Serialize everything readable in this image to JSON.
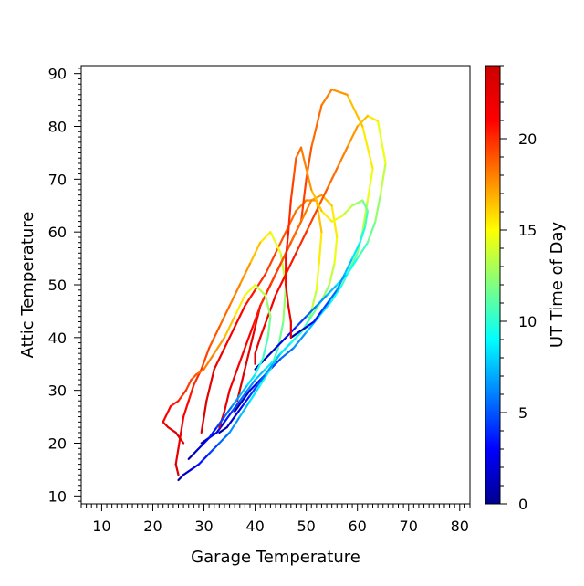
{
  "chart_data": {
    "type": "line",
    "xlabel": "Garage Temperature",
    "ylabel": "Attic Temperature",
    "xlim": [
      6,
      82
    ],
    "ylim": [
      8.5,
      91.5
    ],
    "x_ticks": [
      "10",
      "20",
      "30",
      "40",
      "50",
      "60",
      "70",
      "80"
    ],
    "y_ticks": [
      "10",
      "20",
      "30",
      "40",
      "50",
      "60",
      "70",
      "80",
      "90"
    ],
    "colorbar": {
      "label": "UT Time of Day",
      "range": [
        0,
        24
      ],
      "ticks": [
        "0",
        "5",
        "10",
        "15",
        "20"
      ],
      "colormap": [
        "#00008f",
        "#0000ff",
        "#0080ff",
        "#00ffff",
        "#80ff80",
        "#ffff00",
        "#ff8000",
        "#ff0000",
        "#cc0000"
      ]
    },
    "grid": false,
    "series": [
      {
        "x": [
          29.5,
          31,
          32.5,
          34,
          35.5,
          37,
          38.5,
          40,
          42,
          44,
          46,
          48,
          50,
          51,
          52,
          52.5,
          53,
          52,
          50,
          48,
          46,
          44,
          42,
          40,
          38,
          36,
          34,
          32,
          30.5,
          29.5
        ],
        "y": [
          20,
          21,
          22,
          24,
          26,
          28,
          30,
          32,
          34,
          36,
          38,
          40,
          42,
          45,
          49,
          54,
          60,
          66,
          66,
          64,
          60,
          56,
          52,
          49,
          46,
          42,
          38,
          34,
          28,
          22
        ],
        "t": [
          0.5,
          1.5,
          2.5,
          3.5,
          4.5,
          5.5,
          6.5,
          7.5,
          8.5,
          9.5,
          10.5,
          11.5,
          12.5,
          13.5,
          14.5,
          15.5,
          16.5,
          17.5,
          18,
          18.5,
          19,
          19.5,
          20,
          20.5,
          21,
          21.5,
          22,
          22.5,
          23,
          23.5
        ]
      },
      {
        "x": [
          36,
          37.5,
          39,
          41,
          43,
          45,
          47.5,
          50,
          52.5,
          55,
          57,
          58.5,
          60,
          61,
          62,
          63,
          61,
          58,
          55,
          53,
          51,
          50,
          49,
          47,
          45,
          43,
          41,
          39.5,
          38,
          36.5
        ],
        "y": [
          26,
          28,
          30,
          32,
          34,
          36,
          38,
          41,
          44,
          47,
          50,
          53,
          56,
          60,
          66,
          72,
          80,
          86,
          87,
          84,
          76,
          70,
          62,
          58,
          54,
          50,
          46,
          40,
          34,
          28
        ],
        "t": [
          0.5,
          1.5,
          2.5,
          3.5,
          4.5,
          5.5,
          6.5,
          7.5,
          8.5,
          9.5,
          10.5,
          11.5,
          12.5,
          13.5,
          14.5,
          15.5,
          16.5,
          17.5,
          18,
          18.5,
          19,
          19.5,
          20,
          20.5,
          21,
          21.5,
          22,
          22.5,
          23,
          23.5
        ]
      },
      {
        "x": [
          25,
          26,
          27.5,
          29,
          31,
          33,
          35,
          37,
          39,
          41,
          43,
          44.5,
          45.5,
          46,
          45,
          43,
          41,
          39,
          37,
          35,
          33,
          31,
          29.5,
          28,
          27,
          26,
          25.5,
          25,
          24.5,
          25
        ],
        "y": [
          13,
          14,
          15,
          16,
          18,
          20,
          22,
          25,
          28,
          31,
          34,
          38,
          43,
          50,
          56,
          60,
          58,
          54,
          50,
          46,
          42,
          38,
          34,
          31,
          28,
          25,
          22,
          19,
          16,
          14
        ],
        "t": [
          0.5,
          1.5,
          2.5,
          3.5,
          4.5,
          5.5,
          6.5,
          7.5,
          8.5,
          9.5,
          10.5,
          11.5,
          12.5,
          13.5,
          14.5,
          15.5,
          16.5,
          17.5,
          18,
          18.5,
          19,
          19.5,
          20,
          20.5,
          21,
          21.5,
          22,
          22.5,
          23,
          23.5
        ]
      },
      {
        "x": [
          33,
          34.5,
          36,
          37.5,
          39,
          40.5,
          42,
          43.5,
          45,
          47,
          49,
          51,
          53,
          54.5,
          55.5,
          56,
          55,
          53,
          51,
          49,
          47,
          45,
          43,
          41,
          39.5,
          38,
          36.5,
          35,
          34,
          33
        ],
        "y": [
          22,
          23,
          25,
          27,
          29,
          31,
          33,
          35,
          37,
          39,
          41,
          44,
          47,
          50,
          54,
          59,
          65,
          67,
          66,
          62,
          58,
          54,
          50,
          46,
          42,
          38,
          34,
          30,
          26,
          23
        ],
        "t": [
          0.5,
          1.5,
          2.5,
          3.5,
          4.5,
          5.5,
          6.5,
          7.5,
          8.5,
          9.5,
          10.5,
          11.5,
          12.5,
          13.5,
          14.5,
          15.5,
          16.5,
          17.5,
          18,
          18.5,
          19,
          19.5,
          20,
          20.5,
          21,
          21.5,
          22,
          22.5,
          23,
          23.5
        ]
      },
      {
        "x": [
          40,
          42,
          44,
          46,
          48,
          50,
          52,
          54,
          56,
          58,
          60,
          62,
          63.5,
          64.5,
          65.5,
          64,
          62,
          60,
          58,
          56,
          54,
          52,
          50,
          48,
          46,
          44,
          42.5,
          41,
          40,
          40
        ],
        "y": [
          34,
          36,
          38,
          40,
          42,
          44,
          46,
          48,
          50,
          52,
          55,
          58,
          62,
          67,
          73,
          81,
          82,
          80,
          76,
          72,
          68,
          64,
          60,
          56,
          52,
          48,
          44,
          40,
          37,
          35
        ],
        "t": [
          0.5,
          1.5,
          2.5,
          3.5,
          4.5,
          5.5,
          6.5,
          7.5,
          8.5,
          9.5,
          10.5,
          11.5,
          12.5,
          13.5,
          14.5,
          15.5,
          16.5,
          17.5,
          18,
          18.5,
          19,
          19.5,
          20,
          20.5,
          21,
          21.5,
          22,
          22.5,
          23,
          23.5
        ]
      },
      {
        "x": [
          27,
          28,
          29.5,
          31,
          32.5,
          34,
          35.5,
          37,
          38.5,
          40,
          41.5,
          42.5,
          43,
          42,
          40,
          38,
          36,
          34,
          32,
          30,
          28.5,
          27.5,
          26.5,
          25,
          23.5,
          22.5,
          22,
          23,
          24.5,
          26
        ],
        "y": [
          17,
          18,
          19.5,
          21,
          23,
          25,
          27,
          29,
          31,
          33,
          36,
          40,
          44,
          48,
          50,
          48,
          44,
          40,
          37,
          34,
          33,
          32,
          30,
          28,
          27,
          25,
          24,
          23,
          22,
          20
        ],
        "t": [
          0.5,
          1.5,
          2.5,
          3.5,
          4.5,
          5.5,
          6.5,
          7.5,
          8.5,
          9.5,
          10.5,
          11.5,
          12.5,
          13.5,
          14.5,
          15.5,
          16.5,
          17.5,
          18,
          18.5,
          19,
          19.5,
          20,
          20.5,
          21,
          21.5,
          22,
          22.5,
          23,
          23.5
        ]
      },
      {
        "x": [
          47,
          48.5,
          50,
          51.5,
          53,
          54.5,
          56,
          57.5,
          59,
          60.5,
          61.5,
          62,
          61,
          59,
          57,
          55,
          53,
          51,
          50,
          49,
          48,
          47.5,
          47,
          46.5,
          46,
          46,
          46.5,
          47,
          47,
          47
        ],
        "y": [
          40,
          41,
          42,
          43,
          45,
          47,
          49,
          52,
          55,
          58,
          61,
          64,
          66,
          65,
          63,
          62,
          64,
          68,
          72,
          76,
          74,
          70,
          66,
          60,
          55,
          50,
          46,
          43,
          41,
          40
        ],
        "t": [
          0.5,
          1.5,
          2.5,
          3.5,
          4.5,
          5.5,
          6.5,
          7.5,
          8.5,
          9.5,
          10.5,
          11.5,
          12.5,
          13.5,
          14.5,
          15.5,
          16.5,
          17.5,
          18,
          18.5,
          19,
          19.5,
          20,
          20.5,
          21,
          21.5,
          22,
          22.5,
          23,
          23.5
        ]
      }
    ]
  }
}
